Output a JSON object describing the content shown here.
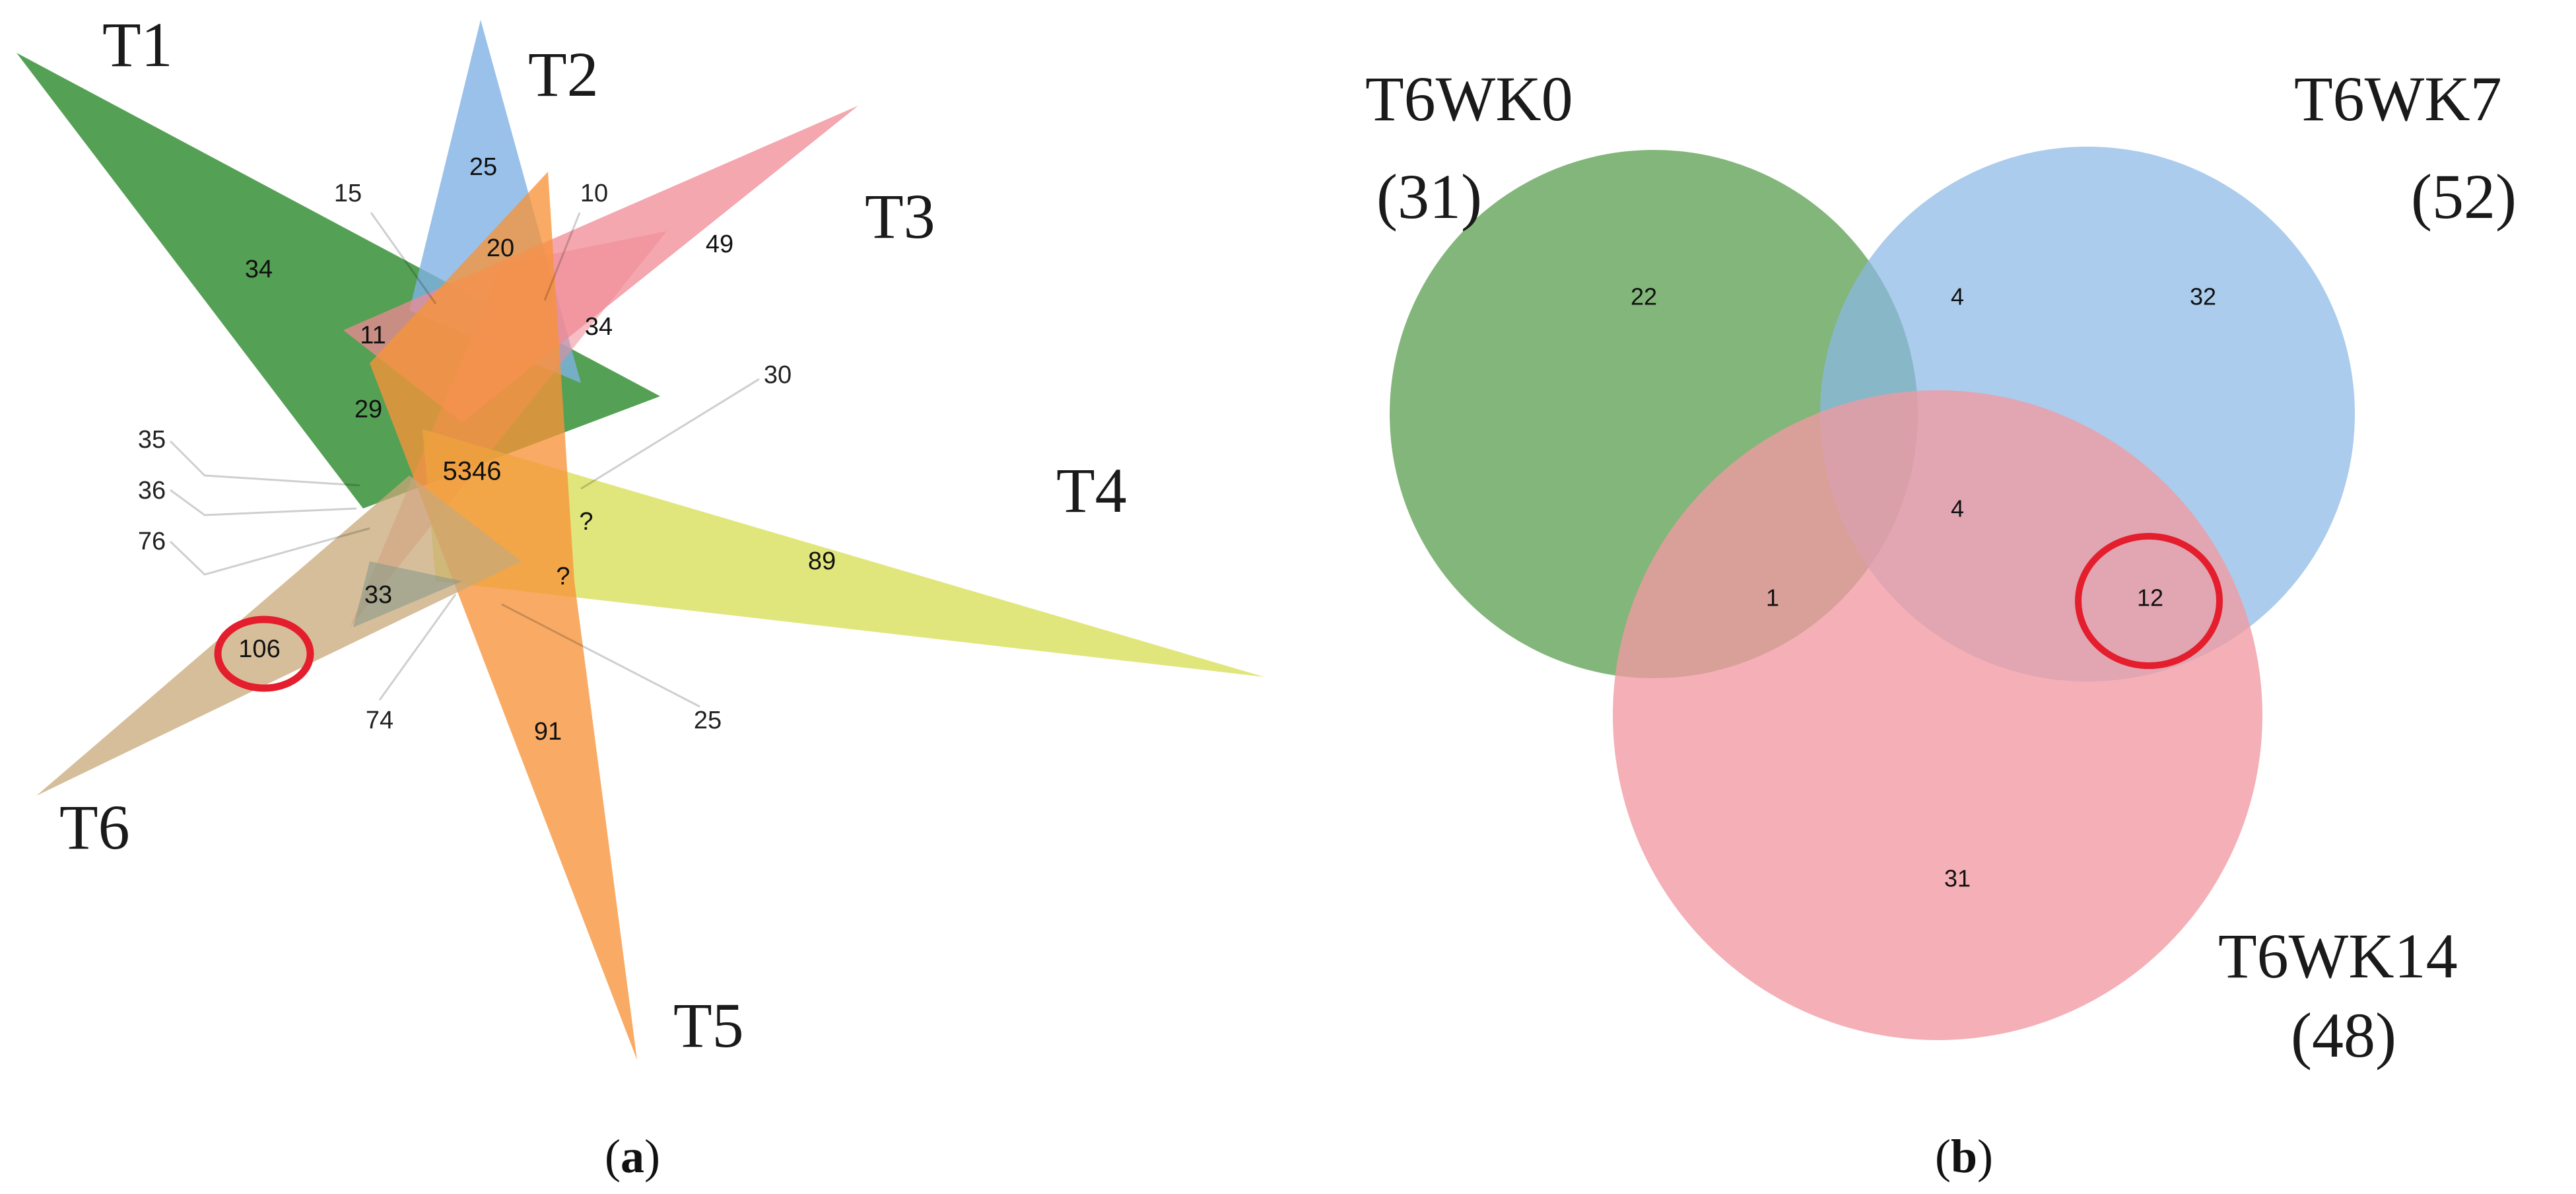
{
  "panel_a": {
    "caption_open": "(",
    "caption_letter": "a",
    "caption_close": ")",
    "sets": [
      {
        "id": "T1",
        "label": "T1",
        "color": "#2e8b2e"
      },
      {
        "id": "T2",
        "label": "T2",
        "color": "#7fb2e5"
      },
      {
        "id": "T3",
        "label": "T3",
        "color": "#f08a94"
      },
      {
        "id": "T4",
        "label": "T4",
        "color": "#d6dc4a"
      },
      {
        "id": "T5",
        "label": "T5",
        "color": "#f7943a"
      },
      {
        "id": "T6",
        "label": "T6",
        "color": "#c8a878"
      }
    ],
    "region_counts": {
      "t1_only": "34",
      "t2_only": "25",
      "t3_only": "49",
      "t4_only": "89",
      "t5_only": "91",
      "t6_only": "106",
      "r_20": "20",
      "r_11": "11",
      "r_29": "29",
      "r_34": "34",
      "r_33": "33",
      "r_q1": "?",
      "r_q2": "?",
      "core": "5346"
    },
    "callouts": {
      "c15": "15",
      "c10": "10",
      "c30": "30",
      "c35": "35",
      "c36": "36",
      "c76": "76",
      "c74": "74",
      "c25": "25"
    },
    "highlight_color": "#e41e2c"
  },
  "panel_b": {
    "caption_open": "(",
    "caption_letter": "b",
    "caption_close": ")",
    "sets": [
      {
        "id": "wk0",
        "name": "T6WK0",
        "total": "(31)",
        "color": "#5a9e4e"
      },
      {
        "id": "wk7",
        "name": "T6WK7",
        "total": "(52)",
        "color": "#8ab8e4"
      },
      {
        "id": "wk14",
        "name": "T6WK14",
        "total": "(48)",
        "color": "#f19aa2"
      }
    ],
    "region_counts": {
      "wk0_only": "22",
      "wk7_only": "32",
      "wk14_only": "31",
      "wk0_wk7": "4",
      "wk0_wk14": "1",
      "wk7_wk14": "12",
      "all_three": "4"
    },
    "highlight_color": "#e41e2c"
  }
}
